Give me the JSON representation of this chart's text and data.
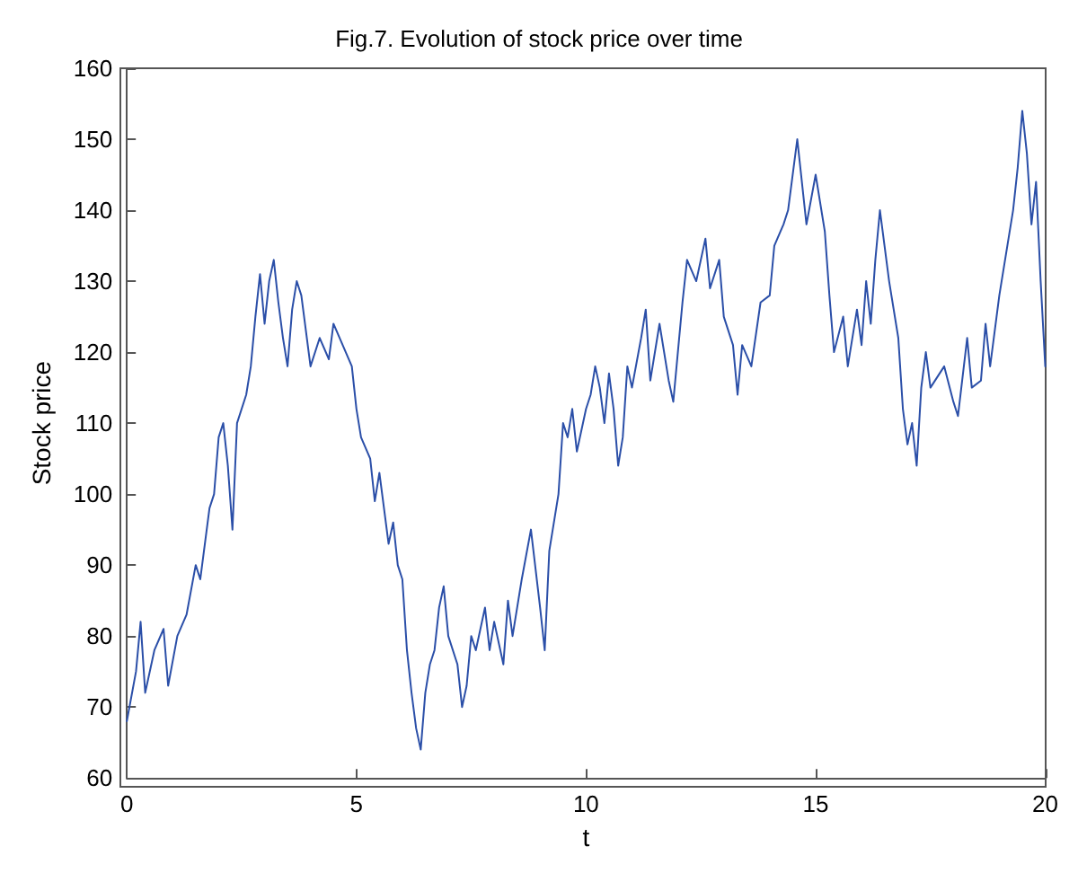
{
  "chart_data": {
    "type": "line",
    "title": "Fig.7. Evolution of stock price over time",
    "xlabel": "t",
    "ylabel": "Stock price",
    "xlim": [
      0,
      20
    ],
    "xticks": [
      0,
      5,
      10,
      15,
      20
    ],
    "ylim": [
      60,
      160
    ],
    "yticks": [
      60,
      70,
      80,
      90,
      100,
      110,
      120,
      130,
      140,
      150,
      160
    ],
    "grid": false,
    "marker": "none",
    "line_style": "solid",
    "series": [
      {
        "color": "#2b4fa8",
        "x": [
          0,
          0.2,
          0.3,
          0.4,
          0.6,
          0.8,
          0.9,
          1.1,
          1.3,
          1.5,
          1.6,
          1.8,
          1.9,
          2.0,
          2.1,
          2.2,
          2.3,
          2.4,
          2.6,
          2.7,
          2.8,
          2.9,
          3.0,
          3.1,
          3.2,
          3.3,
          3.4,
          3.5,
          3.6,
          3.7,
          3.8,
          4.0,
          4.2,
          4.4,
          4.5,
          4.7,
          4.9,
          5.0,
          5.1,
          5.3,
          5.4,
          5.5,
          5.6,
          5.7,
          5.8,
          5.9,
          6.0,
          6.1,
          6.2,
          6.3,
          6.4,
          6.5,
          6.6,
          6.7,
          6.8,
          6.9,
          7.0,
          7.2,
          7.3,
          7.4,
          7.5,
          7.6,
          7.8,
          7.9,
          8.0,
          8.2,
          8.3,
          8.4,
          8.6,
          8.8,
          9.0,
          9.1,
          9.2,
          9.4,
          9.5,
          9.6,
          9.7,
          9.8,
          10.0,
          10.1,
          10.2,
          10.3,
          10.4,
          10.5,
          10.6,
          10.7,
          10.8,
          10.9,
          11.0,
          11.2,
          11.3,
          11.4,
          11.6,
          11.8,
          11.9,
          12.1,
          12.2,
          12.4,
          12.6,
          12.7,
          12.9,
          13.0,
          13.2,
          13.3,
          13.4,
          13.6,
          13.8,
          14.0,
          14.1,
          14.3,
          14.4,
          14.6,
          14.7,
          14.8,
          15.0,
          15.2,
          15.3,
          15.4,
          15.6,
          15.7,
          15.9,
          16.0,
          16.1,
          16.2,
          16.3,
          16.4,
          16.5,
          16.6,
          16.8,
          16.9,
          17.0,
          17.1,
          17.2,
          17.3,
          17.4,
          17.5,
          17.8,
          18.0,
          18.1,
          18.3,
          18.4,
          18.6,
          18.7,
          18.8,
          19.0,
          19.2,
          19.3,
          19.4,
          19.5,
          19.6,
          19.7,
          19.8,
          19.9,
          20.0
        ],
        "values": [
          68,
          75,
          82,
          72,
          78,
          81,
          73,
          80,
          83,
          90,
          88,
          98,
          100,
          108,
          110,
          104,
          95,
          110,
          114,
          118,
          125,
          131,
          124,
          130,
          133,
          127,
          122,
          118,
          126,
          130,
          128,
          118,
          122,
          119,
          124,
          121,
          118,
          112,
          108,
          105,
          99,
          103,
          98,
          93,
          96,
          90,
          88,
          78,
          72,
          67,
          64,
          72,
          76,
          78,
          84,
          87,
          80,
          76,
          70,
          73,
          80,
          78,
          84,
          78,
          82,
          76,
          85,
          80,
          88,
          95,
          84,
          78,
          92,
          100,
          110,
          108,
          112,
          106,
          112,
          114,
          118,
          115,
          110,
          117,
          112,
          104,
          108,
          118,
          115,
          122,
          126,
          116,
          124,
          116,
          113,
          127,
          133,
          130,
          136,
          129,
          133,
          125,
          121,
          114,
          121,
          118,
          127,
          128,
          135,
          138,
          140,
          150,
          144,
          138,
          145,
          137,
          128,
          120,
          125,
          118,
          126,
          121,
          130,
          124,
          133,
          140,
          135,
          130,
          122,
          112,
          107,
          110,
          104,
          115,
          120,
          115,
          118,
          113,
          111,
          122,
          115,
          116,
          124,
          118,
          128,
          136,
          140,
          146,
          154,
          148,
          138,
          144,
          130,
          118
        ]
      }
    ]
  }
}
